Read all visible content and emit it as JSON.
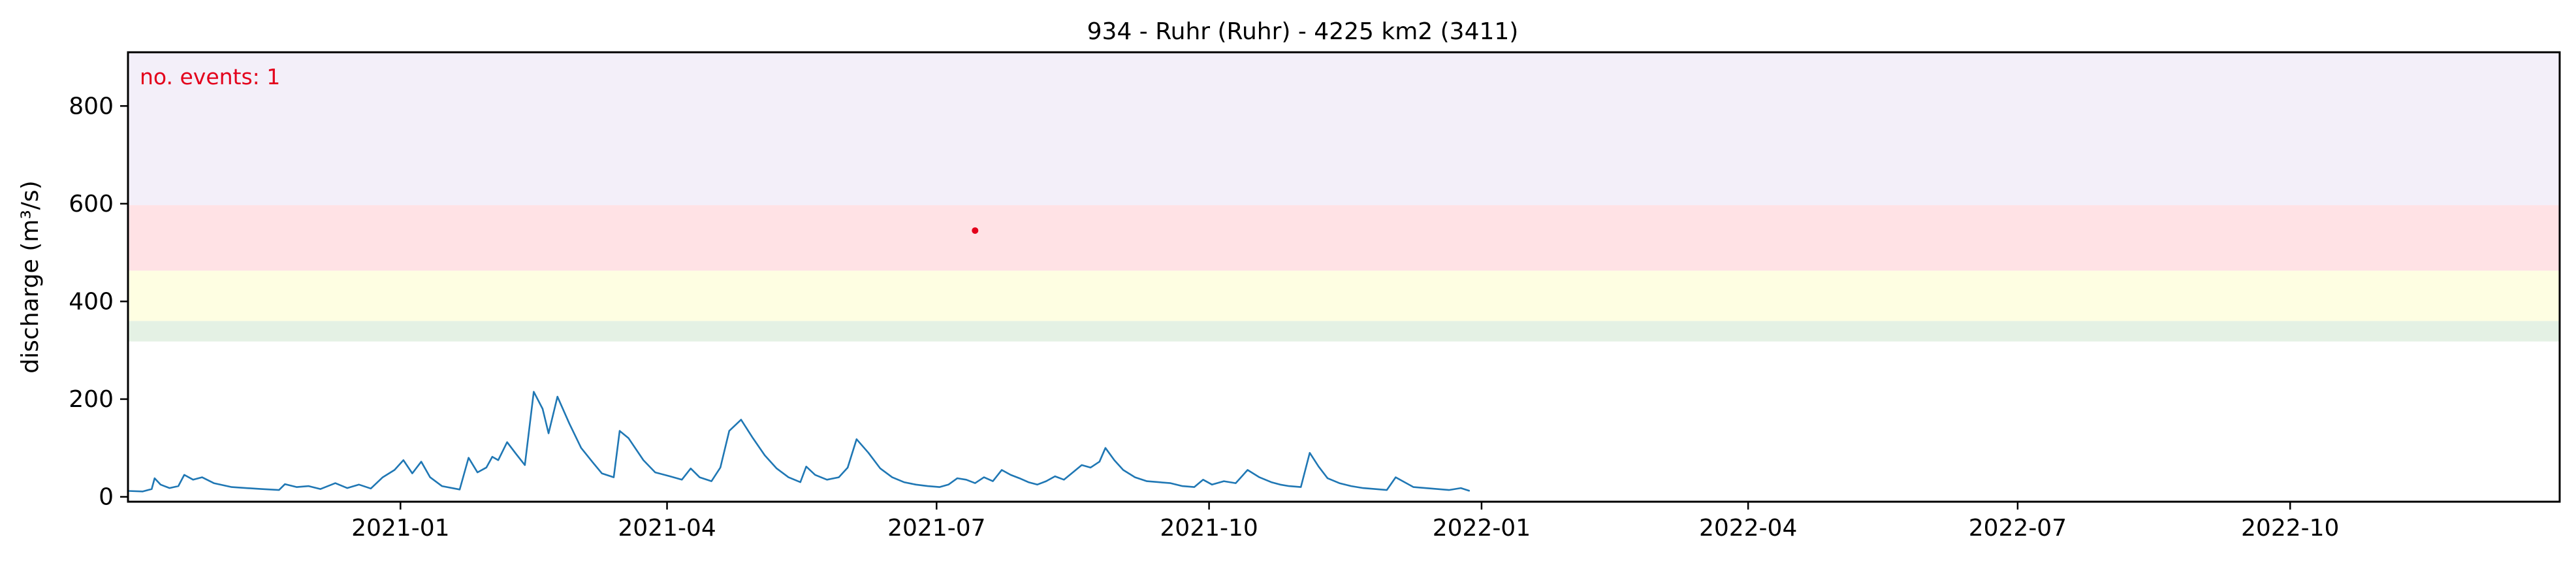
{
  "chart_data": {
    "type": "line",
    "title": "934 - Ruhr (Ruhr) - 4225 km2 (3411)",
    "xlabel": "",
    "ylabel": "discharge (m³/s)",
    "xlim": [
      "2020-10-01",
      "2022-12-31"
    ],
    "ylim": [
      -10,
      910
    ],
    "x_ticks": [
      "2021-01",
      "2021-04",
      "2021-07",
      "2021-10",
      "2022-01",
      "2022-04",
      "2022-07",
      "2022-10"
    ],
    "y_ticks": [
      0,
      200,
      400,
      600,
      800
    ],
    "grid": false,
    "annotation": "no. events: 1",
    "threshold_bands": [
      {
        "from": 318,
        "to": 360,
        "color": "#e4f1e4"
      },
      {
        "from": 360,
        "to": 463,
        "color": "#fefee2"
      },
      {
        "from": 463,
        "to": 597,
        "color": "#ffe2e5"
      },
      {
        "from": 597,
        "to": 910,
        "color": "#f3eff9"
      }
    ],
    "events": [
      {
        "x": "2021-07-14",
        "y": 545
      }
    ],
    "series": [
      {
        "color": "#1f77b4",
        "points": [
          [
            "2020-10-01",
            12
          ],
          [
            "2020-10-06",
            11
          ],
          [
            "2020-10-09",
            16
          ],
          [
            "2020-10-10",
            38
          ],
          [
            "2020-10-12",
            25
          ],
          [
            "2020-10-15",
            18
          ],
          [
            "2020-10-18",
            22
          ],
          [
            "2020-10-20",
            45
          ],
          [
            "2020-10-23",
            35
          ],
          [
            "2020-10-26",
            40
          ],
          [
            "2020-10-30",
            28
          ],
          [
            "2020-11-05",
            20
          ],
          [
            "2020-11-15",
            16
          ],
          [
            "2020-11-21",
            14
          ],
          [
            "2020-11-23",
            26
          ],
          [
            "2020-11-27",
            20
          ],
          [
            "2020-12-01",
            22
          ],
          [
            "2020-12-05",
            16
          ],
          [
            "2020-12-10",
            28
          ],
          [
            "2020-12-14",
            18
          ],
          [
            "2020-12-18",
            25
          ],
          [
            "2020-12-22",
            17
          ],
          [
            "2020-12-26",
            40
          ],
          [
            "2020-12-30",
            55
          ],
          [
            "2021-01-02",
            75
          ],
          [
            "2021-01-05",
            48
          ],
          [
            "2021-01-08",
            72
          ],
          [
            "2021-01-11",
            40
          ],
          [
            "2021-01-15",
            22
          ],
          [
            "2021-01-21",
            15
          ],
          [
            "2021-01-24",
            80
          ],
          [
            "2021-01-27",
            50
          ],
          [
            "2021-01-30",
            60
          ],
          [
            "2021-02-01",
            82
          ],
          [
            "2021-02-03",
            75
          ],
          [
            "2021-02-06",
            112
          ],
          [
            "2021-02-09",
            88
          ],
          [
            "2021-02-12",
            65
          ],
          [
            "2021-02-15",
            215
          ],
          [
            "2021-02-18",
            180
          ],
          [
            "2021-02-20",
            130
          ],
          [
            "2021-02-23",
            205
          ],
          [
            "2021-02-27",
            150
          ],
          [
            "2021-03-03",
            100
          ],
          [
            "2021-03-07",
            70
          ],
          [
            "2021-03-10",
            48
          ],
          [
            "2021-03-14",
            40
          ],
          [
            "2021-03-16",
            135
          ],
          [
            "2021-03-19",
            120
          ],
          [
            "2021-03-24",
            75
          ],
          [
            "2021-03-28",
            50
          ],
          [
            "2021-04-02",
            42
          ],
          [
            "2021-04-06",
            35
          ],
          [
            "2021-04-09",
            58
          ],
          [
            "2021-04-12",
            40
          ],
          [
            "2021-04-16",
            32
          ],
          [
            "2021-04-19",
            60
          ],
          [
            "2021-04-22",
            135
          ],
          [
            "2021-04-26",
            158
          ],
          [
            "2021-04-30",
            120
          ],
          [
            "2021-05-04",
            85
          ],
          [
            "2021-05-08",
            58
          ],
          [
            "2021-05-12",
            40
          ],
          [
            "2021-05-16",
            30
          ],
          [
            "2021-05-18",
            62
          ],
          [
            "2021-05-21",
            45
          ],
          [
            "2021-05-25",
            35
          ],
          [
            "2021-05-29",
            40
          ],
          [
            "2021-06-01",
            60
          ],
          [
            "2021-06-04",
            118
          ],
          [
            "2021-06-08",
            90
          ],
          [
            "2021-06-12",
            58
          ],
          [
            "2021-06-16",
            40
          ],
          [
            "2021-06-20",
            30
          ],
          [
            "2021-06-24",
            25
          ],
          [
            "2021-06-28",
            22
          ],
          [
            "2021-07-02",
            20
          ],
          [
            "2021-07-05",
            25
          ],
          [
            "2021-07-08",
            38
          ],
          [
            "2021-07-11",
            35
          ],
          [
            "2021-07-14",
            28
          ],
          [
            "2021-07-17",
            40
          ],
          [
            "2021-07-20",
            32
          ],
          [
            "2021-07-23",
            55
          ],
          [
            "2021-07-26",
            45
          ],
          [
            "2021-07-29",
            38
          ],
          [
            "2021-08-01",
            30
          ],
          [
            "2021-08-04",
            25
          ],
          [
            "2021-08-07",
            32
          ],
          [
            "2021-08-10",
            42
          ],
          [
            "2021-08-13",
            35
          ],
          [
            "2021-08-16",
            50
          ],
          [
            "2021-08-19",
            65
          ],
          [
            "2021-08-22",
            60
          ],
          [
            "2021-08-25",
            72
          ],
          [
            "2021-08-27",
            100
          ],
          [
            "2021-08-30",
            75
          ],
          [
            "2021-09-02",
            55
          ],
          [
            "2021-09-06",
            40
          ],
          [
            "2021-09-10",
            32
          ],
          [
            "2021-09-14",
            30
          ],
          [
            "2021-09-18",
            28
          ],
          [
            "2021-09-22",
            22
          ],
          [
            "2021-09-26",
            20
          ],
          [
            "2021-09-29",
            35
          ],
          [
            "2021-10-02",
            25
          ],
          [
            "2021-10-06",
            32
          ],
          [
            "2021-10-10",
            28
          ],
          [
            "2021-10-14",
            55
          ],
          [
            "2021-10-18",
            40
          ],
          [
            "2021-10-22",
            30
          ],
          [
            "2021-10-25",
            25
          ],
          [
            "2021-10-28",
            22
          ],
          [
            "2021-11-01",
            20
          ],
          [
            "2021-11-04",
            90
          ],
          [
            "2021-11-07",
            62
          ],
          [
            "2021-11-10",
            38
          ],
          [
            "2021-11-14",
            28
          ],
          [
            "2021-11-18",
            22
          ],
          [
            "2021-11-22",
            18
          ],
          [
            "2021-11-26",
            16
          ],
          [
            "2021-11-30",
            14
          ],
          [
            "2021-12-03",
            40
          ],
          [
            "2021-12-06",
            30
          ],
          [
            "2021-12-09",
            20
          ],
          [
            "2021-12-13",
            18
          ],
          [
            "2021-12-17",
            16
          ],
          [
            "2021-12-21",
            14
          ],
          [
            "2021-12-25",
            18
          ],
          [
            "2021-12-28",
            12
          ]
        ]
      }
    ]
  }
}
